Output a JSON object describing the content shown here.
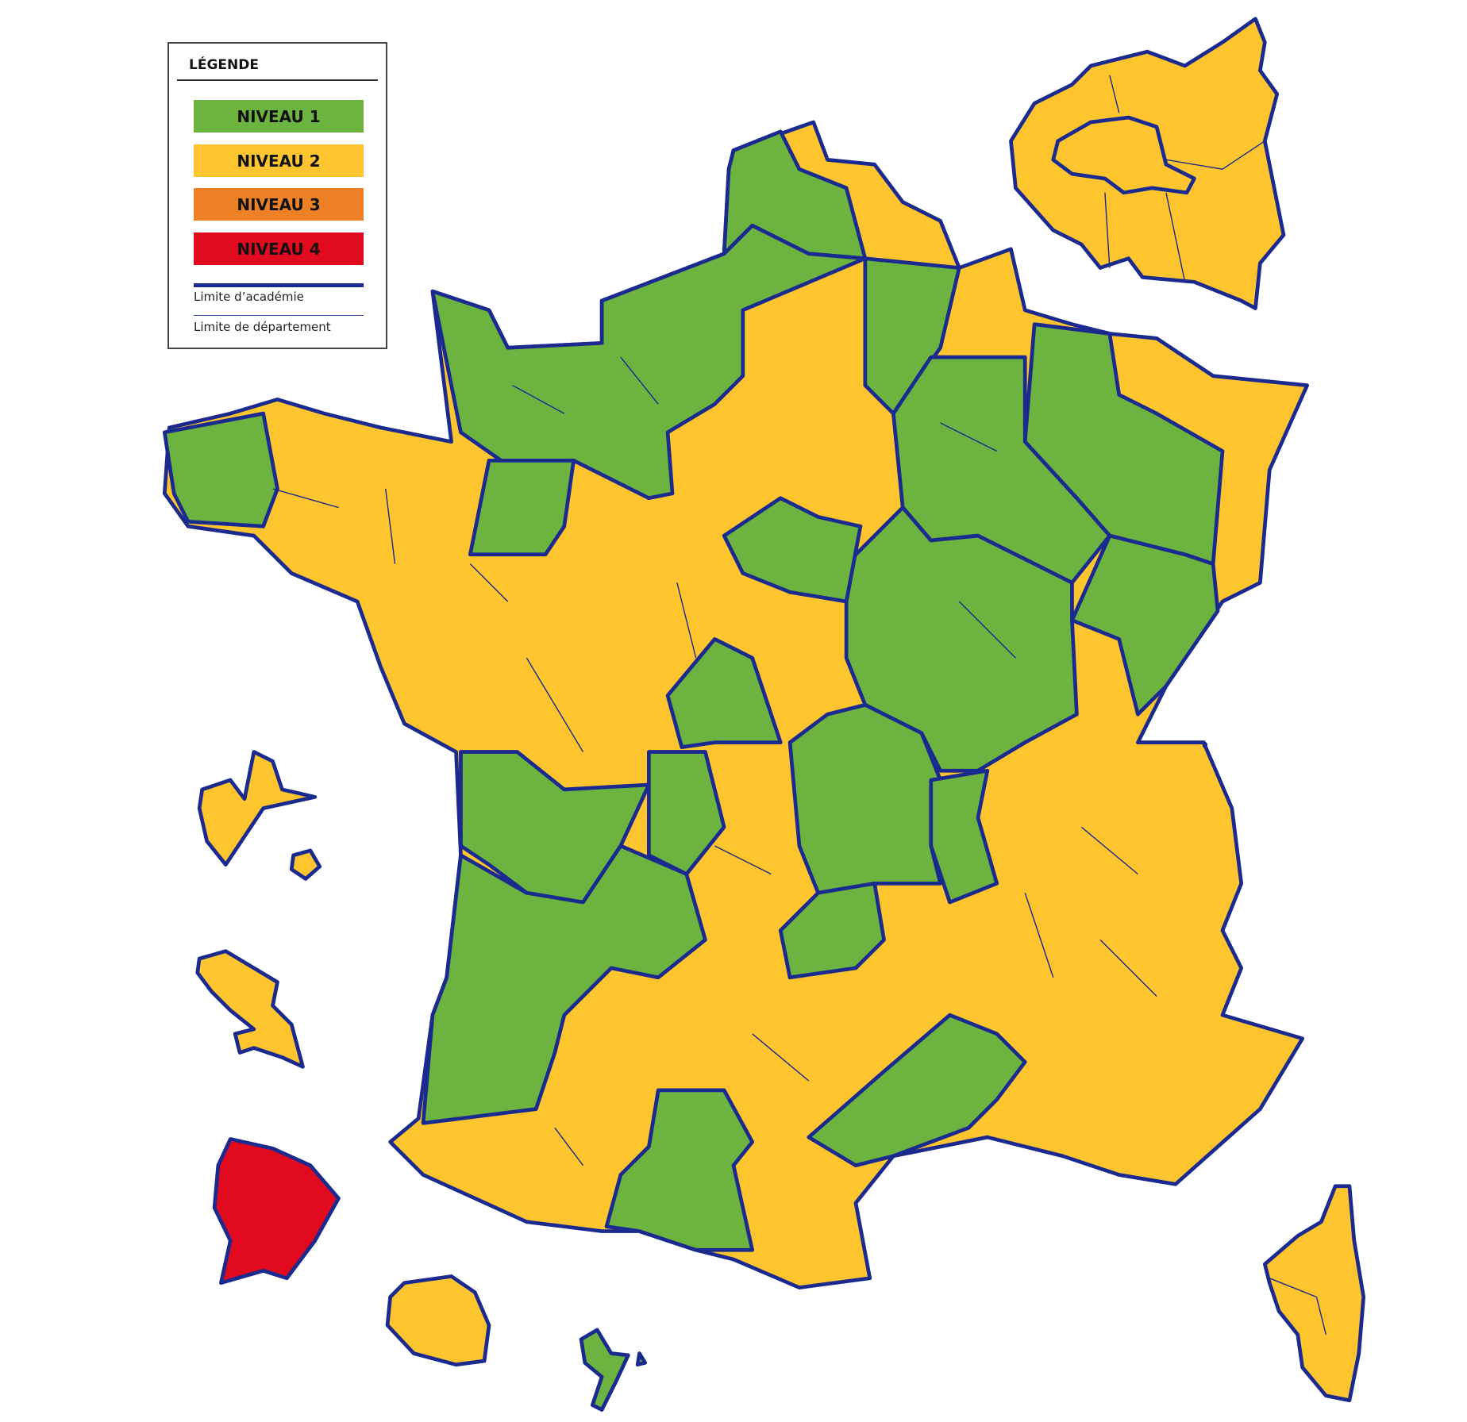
{
  "legend": {
    "title": "LÉGENDE",
    "levels": [
      {
        "label": "NIVEAU 1",
        "color": "#6db33f"
      },
      {
        "label": "NIVEAU 2",
        "color": "#fec52e"
      },
      {
        "label": "NIVEAU 3",
        "color": "#ee8126"
      },
      {
        "label": "NIVEAU 4",
        "color": "#e20a1e"
      }
    ],
    "academy_limit_label": "Limite d’académie",
    "department_limit_label": "Limite de département",
    "academy_limit_color": "#1b2a8f",
    "department_limit_color": "#3a4aa8"
  },
  "map": {
    "mainland_base_level": 2,
    "green_zone_levels": [
      1,
      1,
      1,
      1,
      1,
      1,
      1,
      1,
      1,
      1,
      1,
      1,
      1,
      1,
      1,
      1,
      1,
      1,
      1,
      1
    ],
    "overseas_levels": {
      "guadeloupe": 2,
      "small_island": 2,
      "martinique": 2,
      "guyane": 4,
      "reunion": 2,
      "mayotte": 1
    },
    "corsica_level": 2,
    "paris_inset_level": 2
  }
}
